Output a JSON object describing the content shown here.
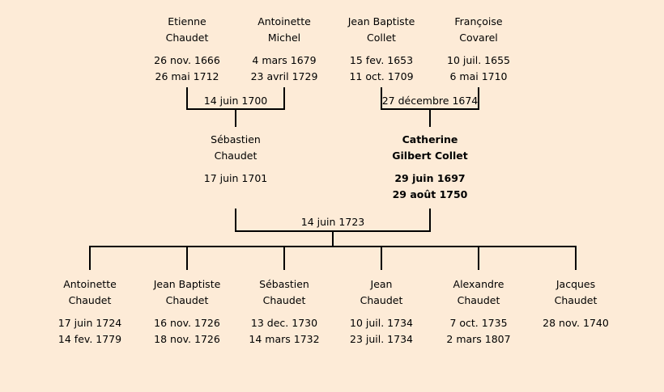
{
  "colors": {
    "background": "#fdebd7",
    "lines": "#000000"
  },
  "grandparents": [
    {
      "first": "Etienne",
      "last": "Chaudet",
      "birth": "26 nov. 1666",
      "death": "26 mai 1712"
    },
    {
      "first": "Antoinette",
      "last": "Michel",
      "birth": "4 mars 1679",
      "death": "23 avril 1729"
    },
    {
      "first": "Jean Baptiste",
      "last": "Collet",
      "birth": "15 fev. 1653",
      "death": "11 oct. 1709"
    },
    {
      "first": "Françoise",
      "last": "Covarel",
      "birth": "10 juil. 1655",
      "death": "6 mai 1710"
    }
  ],
  "grandparent_marriages": [
    "14 juin 1700",
    "27 décembre 1674"
  ],
  "parents": [
    {
      "first": "Sébastien",
      "last": "Chaudet",
      "birth": "17 juin 1701",
      "death": "",
      "bold": false
    },
    {
      "first": "Catherine",
      "last": "Gilbert Collet",
      "birth": "29 juin 1697",
      "death": "29 août 1750",
      "bold": true
    }
  ],
  "parent_marriage": "14 juin 1723",
  "children": [
    {
      "first": "Antoinette",
      "last": "Chaudet",
      "birth": "17 juin 1724",
      "death": "14 fev. 1779"
    },
    {
      "first": "Jean Baptiste",
      "last": "Chaudet",
      "birth": "16 nov. 1726",
      "death": "18 nov. 1726"
    },
    {
      "first": "Sébastien",
      "last": "Chaudet",
      "birth": "13 dec. 1730",
      "death": "14 mars 1732"
    },
    {
      "first": "Jean",
      "last": "Chaudet",
      "birth": "10 juil. 1734",
      "death": "23 juil. 1734"
    },
    {
      "first": "Alexandre",
      "last": "Chaudet",
      "birth": "7 oct. 1735",
      "death": "2 mars 1807"
    },
    {
      "first": "Jacques",
      "last": "Chaudet",
      "birth": "28 nov. 1740",
      "death": ""
    }
  ]
}
